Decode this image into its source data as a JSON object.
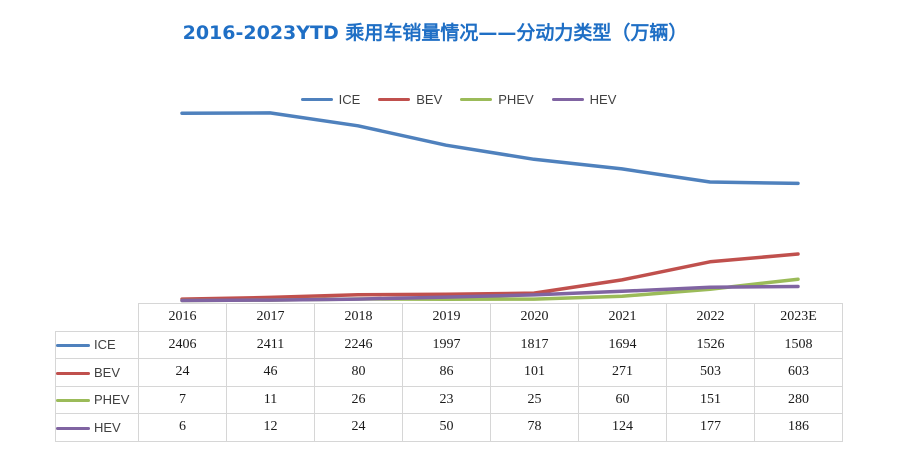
{
  "chart_data": {
    "type": "line",
    "title": "2016-2023YTD 乘用车销量情况——分动力类型（万辆）",
    "categories": [
      "2016",
      "2017",
      "2018",
      "2019",
      "2020",
      "2021",
      "2022",
      "2023E"
    ],
    "series": [
      {
        "name": "ICE",
        "color": "#4f81bd",
        "values": [
          2406,
          2411,
          2246,
          1997,
          1817,
          1694,
          1526,
          1508
        ]
      },
      {
        "name": "BEV",
        "color": "#c0504d",
        "values": [
          24,
          46,
          80,
          86,
          101,
          271,
          503,
          603
        ]
      },
      {
        "name": "PHEV",
        "color": "#9bbb59",
        "values": [
          7,
          11,
          26,
          23,
          25,
          60,
          151,
          280
        ]
      },
      {
        "name": "HEV",
        "color": "#8064a2",
        "values": [
          6,
          12,
          24,
          50,
          78,
          124,
          177,
          186
        ]
      }
    ],
    "ylim": [
      0,
      2500
    ],
    "legend_position": "top-center",
    "grid": false,
    "xlabel": "",
    "ylabel": ""
  }
}
